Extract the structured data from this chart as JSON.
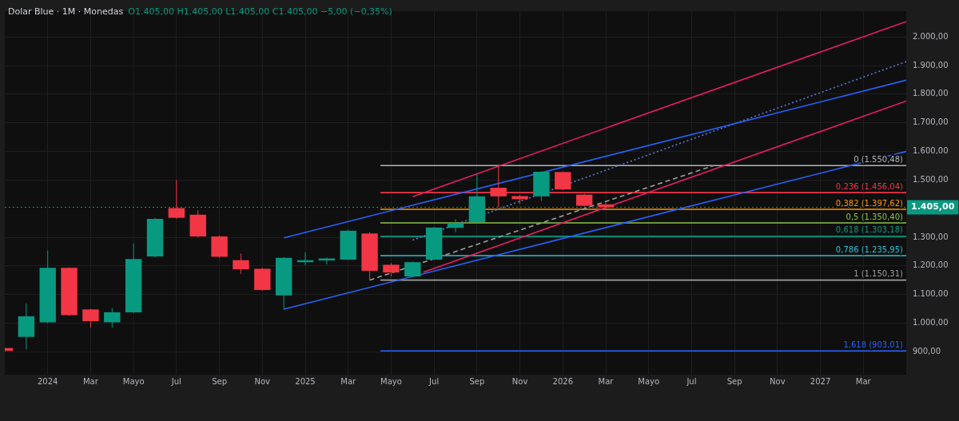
{
  "chart_data": {
    "type": "candlestick",
    "title": "Dolar Blue · 1M · Monedas",
    "subtitle": "O1.405,00 H1.405,00 L1.405,00 C1.405,00 −5,00 (−0,35%)",
    "x": [
      "2023-11",
      "2023-12",
      "2024-01",
      "2024-02",
      "2024-03",
      "2024-04",
      "2024-05",
      "2024-06",
      "2024-07",
      "2024-08",
      "2024-09",
      "2024-10",
      "2024-11",
      "2024-12",
      "2025-01",
      "2025-02",
      "2025-03",
      "2025-04",
      "2025-05",
      "2025-06",
      "2025-07",
      "2025-08",
      "2025-09",
      "2025-10",
      "2025-11",
      "2025-12",
      "2026-01",
      "2026-02",
      "2026-03"
    ],
    "ohlc": [
      [
        913,
        915,
        900,
        903
      ],
      [
        952,
        1069,
        908,
        1024
      ],
      [
        1003,
        1254,
        1000,
        1193
      ],
      [
        1193,
        1195,
        1025,
        1028
      ],
      [
        1048,
        1050,
        984,
        1007
      ],
      [
        1003,
        1053,
        984,
        1038
      ],
      [
        1038,
        1278,
        1035,
        1224
      ],
      [
        1233,
        1368,
        1230,
        1364
      ],
      [
        1402,
        1500,
        1365,
        1368
      ],
      [
        1379,
        1394,
        1300,
        1303
      ],
      [
        1303,
        1306,
        1228,
        1232
      ],
      [
        1220,
        1243,
        1172,
        1188
      ],
      [
        1190,
        1193,
        1113,
        1116
      ],
      [
        1097,
        1230,
        1047,
        1228
      ],
      [
        1213,
        1248,
        1202,
        1220
      ],
      [
        1219,
        1230,
        1205,
        1226
      ],
      [
        1222,
        1325,
        1220,
        1323
      ],
      [
        1313,
        1318,
        1150,
        1183
      ],
      [
        1204,
        1210,
        1163,
        1177
      ],
      [
        1163,
        1215,
        1160,
        1213
      ],
      [
        1222,
        1336,
        1220,
        1334
      ],
      [
        1333,
        1363,
        1318,
        1349
      ],
      [
        1353,
        1521,
        1350,
        1443
      ],
      [
        1473,
        1550,
        1406,
        1443
      ],
      [
        1444,
        1448,
        1417,
        1433
      ],
      [
        1443,
        1531,
        1427,
        1529
      ],
      [
        1528,
        1530,
        1465,
        1467
      ],
      [
        1449,
        1452,
        1408,
        1410
      ],
      [
        1415,
        1420,
        1403,
        1405
      ]
    ],
    "colors": [
      "#f23645",
      "#089981",
      "#089981",
      "#f23645",
      "#f23645",
      "#089981",
      "#089981",
      "#089981",
      "#f23645",
      "#f23645",
      "#f23645",
      "#f23645",
      "#f23645",
      "#089981",
      "#089981",
      "#089981",
      "#089981",
      "#f23645",
      "#f23645",
      "#089981",
      "#089981",
      "#089981",
      "#089981",
      "#f23645",
      "#f23645",
      "#089981",
      "#f23645",
      "#f23645",
      "#f23645"
    ],
    "series": [
      {
        "type": "line",
        "color": "#2962ff",
        "x": [
          "2024-12",
          "2027-05"
        ],
        "values": [
          1298,
          1849
        ]
      },
      {
        "type": "line",
        "color": "#2962ff",
        "x": [
          "2024-12",
          "2027-05"
        ],
        "values": [
          1049,
          1600
        ]
      },
      {
        "type": "line",
        "color": "#e91e63",
        "x": [
          "2025-06",
          "2027-05"
        ],
        "values": [
          1442,
          2054
        ]
      },
      {
        "type": "line",
        "color": "#e91e63",
        "x": [
          "2025-06-16",
          "2027-05"
        ],
        "values": [
          1178,
          1776
        ]
      },
      {
        "type": "line",
        "color": "#5b7bd6",
        "line_style": "dotted",
        "x": [
          "2025-06",
          "2027-05"
        ],
        "values": [
          1290,
          1914
        ]
      },
      {
        "type": "line",
        "color": "#9e9e9e",
        "line_style": "dashed",
        "x": [
          "2025-04",
          "2026-08"
        ],
        "values": [
          1150.31,
          1550
        ]
      },
      {
        "type": "line",
        "color": "#b2b5be",
        "x": [
          "2025-04-16",
          "2027-05"
        ],
        "values": [
          1550.48,
          1550.48
        ]
      },
      {
        "type": "line",
        "color": "#f23645",
        "x": [
          "2025-04-16",
          "2027-05"
        ],
        "values": [
          1456.04,
          1456.04
        ]
      },
      {
        "type": "line",
        "color": "#ff9800",
        "x": [
          "2025-04-16",
          "2027-05"
        ],
        "values": [
          1397.62,
          1397.62
        ]
      },
      {
        "type": "line",
        "color": "#8bc34a",
        "x": [
          "2025-04-16",
          "2027-05"
        ],
        "values": [
          1350.4,
          1350.4
        ]
      },
      {
        "type": "line",
        "color": "#089981",
        "x": [
          "2025-04-16",
          "2027-05"
        ],
        "values": [
          1303.18,
          1303.18
        ]
      },
      {
        "type": "line",
        "color": "#26c6da",
        "x": [
          "2025-04-16",
          "2027-05"
        ],
        "values": [
          1235.95,
          1235.95
        ]
      },
      {
        "type": "line",
        "color": "#9e9e9e",
        "x": [
          "2025-04-16",
          "2027-05"
        ],
        "values": [
          1150.31,
          1150.31
        ]
      },
      {
        "type": "line",
        "color": "#2962ff",
        "x": [
          "2025-04-16",
          "2027-05"
        ],
        "values": [
          903.01,
          903.01
        ]
      }
    ],
    "annotations": [
      {
        "text": "0 (1.550,48)",
        "x": "2027-05",
        "y": 1550.48
      },
      {
        "text": "0,236 (1.456,04)",
        "x": "2027-05",
        "y": 1456.04
      },
      {
        "text": "0,382 (1.397,62)",
        "x": "2027-05",
        "y": 1397.62
      },
      {
        "text": "0,5 (1.350,40)",
        "x": "2027-05",
        "y": 1350.4
      },
      {
        "text": "0,618 (1.303,18)",
        "x": "2027-05",
        "y": 1303.18
      },
      {
        "text": "0,786 (1.235,95)",
        "x": "2027-05",
        "y": 1235.95
      },
      {
        "text": "1 (1.150,31)",
        "x": "2027-05",
        "y": 1150.31
      },
      {
        "text": "1,618 (903,01)",
        "x": "2027-05",
        "y": 903.01
      }
    ],
    "ref_lines": [
      {
        "axis": "y",
        "value": 1405,
        "label": "1.405,00",
        "color": "#089981",
        "line_style": "dotted"
      }
    ],
    "xlim": [
      "2023-11",
      "2027-05"
    ],
    "xticks": [
      {
        "value": "2024-01",
        "label": "2024"
      },
      {
        "value": "2024-03",
        "label": "Mar"
      },
      {
        "value": "2024-05",
        "label": "Mayo"
      },
      {
        "value": "2024-07",
        "label": "Jul"
      },
      {
        "value": "2024-09",
        "label": "Sep"
      },
      {
        "value": "2024-11",
        "label": "Nov"
      },
      {
        "value": "2025-01",
        "label": "2025"
      },
      {
        "value": "2025-03",
        "label": "Mar"
      },
      {
        "value": "2025-05",
        "label": "Mayo"
      },
      {
        "value": "2025-07",
        "label": "Jul"
      },
      {
        "value": "2025-09",
        "label": "Sep"
      },
      {
        "value": "2025-11",
        "label": "Nov"
      },
      {
        "value": "2026-01",
        "label": "2026"
      },
      {
        "value": "2026-03",
        "label": "Mar"
      },
      {
        "value": "2026-05",
        "label": "Mayo"
      },
      {
        "value": "2026-07",
        "label": "Jul"
      },
      {
        "value": "2026-09",
        "label": "Sep"
      },
      {
        "value": "2026-11",
        "label": "Nov"
      },
      {
        "value": "2027-01",
        "label": "2027"
      },
      {
        "value": "2027-03",
        "label": "Mar"
      }
    ],
    "ylim": [
      820,
      2090
    ],
    "yticks": [
      {
        "value": 900,
        "label": "900,00"
      },
      {
        "value": 1000,
        "label": "1.000,00"
      },
      {
        "value": 1100,
        "label": "1.100,00"
      },
      {
        "value": 1200,
        "label": "1.200,00"
      },
      {
        "value": 1300,
        "label": "1.300,00"
      },
      {
        "value": 1500,
        "label": "1.500,00"
      },
      {
        "value": 1600,
        "label": "1.600,00"
      },
      {
        "value": 1700,
        "label": "1.700,00"
      },
      {
        "value": 1800,
        "label": "1.800,00"
      },
      {
        "value": 1900,
        "label": "1.900,00"
      },
      {
        "value": 2000,
        "label": "2.000,00"
      }
    ],
    "grid": true,
    "legend": false
  }
}
